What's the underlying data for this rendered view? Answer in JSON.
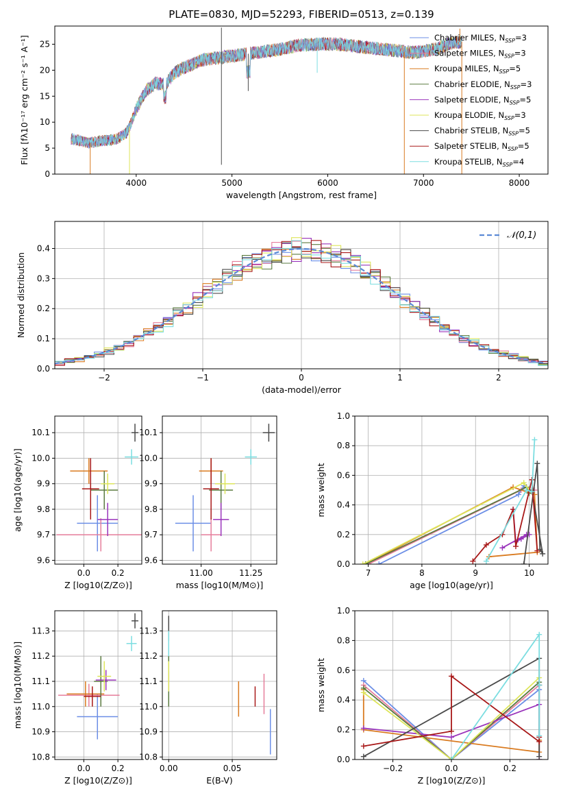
{
  "figure_title": "PLATE=0830, MJD=52293, FIBERID=0513, z=0.139",
  "colors": [
    "#6b8ee6",
    "#e67d9b",
    "#d97a1f",
    "#5a7a3f",
    "#9933bb",
    "#dde55a",
    "#4a4a4a",
    "#a81818",
    "#7bdde0"
  ],
  "chart_data": [
    {
      "id": "spectrum",
      "type": "line",
      "xlabel": "wavelength [Angstrom, rest frame]",
      "ylabel": "Flux [fλ10⁻¹⁷ erg cm⁻² s⁻¹ A⁻¹]",
      "xlim": [
        3150,
        8300
      ],
      "ylim": [
        0,
        28.5
      ],
      "xticks": [
        4000,
        5000,
        6000,
        7000,
        8000
      ],
      "yticks": [
        0,
        5,
        10,
        15,
        20,
        25
      ],
      "continuum": {
        "x": [
          3320,
          3400,
          3500,
          3600,
          3700,
          3800,
          3900,
          3950,
          4000,
          4100,
          4200,
          4300,
          4400,
          4500,
          4700,
          4900,
          5100,
          5300,
          5500,
          5700,
          5900,
          6100,
          6300,
          6500,
          6700,
          6900,
          7100,
          7300,
          7400
        ],
        "y": [
          6.8,
          6.5,
          6.0,
          6.3,
          6.5,
          6.8,
          8.0,
          10.0,
          12.5,
          16.0,
          17.5,
          17.2,
          19.5,
          20.5,
          22.0,
          22.5,
          23.0,
          23.5,
          24.0,
          24.8,
          25.0,
          25.0,
          24.6,
          24.2,
          23.8,
          23.4,
          24.0,
          25.2,
          25.5
        ]
      },
      "spikes": [
        {
          "x": 3520,
          "y": 0.0,
          "series": 2
        },
        {
          "x": 3930,
          "y": 0.0,
          "series": 5
        },
        {
          "x": 4890,
          "y": 28.2,
          "series": 6
        },
        {
          "x": 4890,
          "y": 1.8,
          "series": 6
        },
        {
          "x": 5170,
          "y": 16.0,
          "series": 6
        },
        {
          "x": 5890,
          "y": 19.5,
          "series": 8
        },
        {
          "x": 6800,
          "y": 0.0,
          "series": 2
        },
        {
          "x": 7400,
          "y": 0.0,
          "series": 2
        },
        {
          "x": 7380,
          "y": 28.0,
          "series": 2
        }
      ],
      "legend": [
        {
          "label": "Chabrier MILES, N",
          "sub": "SSP",
          "eq": "=3",
          "series": 0
        },
        {
          "label": "Salpeter MILES, N",
          "sub": "SSP",
          "eq": "=3",
          "series": 1
        },
        {
          "label": "Kroupa MILES, N",
          "sub": "SSP",
          "eq": "=5",
          "series": 2
        },
        {
          "label": "Chabrier ELODIE, N",
          "sub": "SSP",
          "eq": "=3",
          "series": 3
        },
        {
          "label": "Salpeter ELODIE, N",
          "sub": "SSP",
          "eq": "=5",
          "series": 4
        },
        {
          "label": "Kroupa ELODIE, N",
          "sub": "SSP",
          "eq": "=3",
          "series": 5
        },
        {
          "label": "Chabrier STELIB, N",
          "sub": "SSP",
          "eq": "=5",
          "series": 6
        },
        {
          "label": "Salpeter STELIB, N",
          "sub": "SSP",
          "eq": "=5",
          "series": 7
        },
        {
          "label": "Kroupa STELIB, N",
          "sub": "SSP",
          "eq": "=4",
          "series": 8
        }
      ],
      "legend_placement": "upper-right"
    },
    {
      "id": "residuals",
      "type": "histogram",
      "xlabel": "(data-model)/error",
      "ylabel": "Normed distribution",
      "xlim": [
        -2.5,
        2.5
      ],
      "ylim": [
        0,
        0.49
      ],
      "xticks": [
        -2,
        -1,
        0,
        1,
        2
      ],
      "yticks": [
        0.0,
        0.1,
        0.2,
        0.3,
        0.4
      ],
      "bin_width": 0.1,
      "legend": "𝒩(0,1)",
      "legend_placement": "upper-right",
      "gaussian": {
        "mu": 0,
        "sigma": 1,
        "color": "#5b8ad6"
      }
    },
    {
      "id": "age-vs-Z",
      "type": "errorbar",
      "xlabel": "Z [log10(Z/Z⊙)]",
      "ylabel": "age  [log10(age/yr)]",
      "xlim": [
        -0.17,
        0.34
      ],
      "ylim": [
        9.585,
        10.165
      ],
      "xticks": [
        0.0,
        0.2
      ],
      "yticks": [
        9.6,
        9.7,
        9.8,
        9.9,
        10.0,
        10.1
      ],
      "points": [
        {
          "x": 0.08,
          "xerr": 0.12,
          "y": 9.745,
          "yerr": 0.11,
          "series": 0
        },
        {
          "x": 0.1,
          "xerr": 0.26,
          "y": 9.7,
          "yerr": 0.065,
          "series": 1
        },
        {
          "x": 0.03,
          "xerr": 0.11,
          "y": 9.95,
          "yerr": 0.05,
          "series": 2
        },
        {
          "x": 0.12,
          "xerr": 0.08,
          "y": 9.875,
          "yerr": 0.075,
          "series": 3
        },
        {
          "x": 0.14,
          "xerr": 0.06,
          "y": 9.76,
          "yerr": 0.065,
          "series": 4
        },
        {
          "x": 0.14,
          "xerr": 0.04,
          "y": 9.9,
          "yerr": 0.04,
          "series": 5
        },
        {
          "x": 0.3,
          "xerr": 0.02,
          "y": 10.1,
          "yerr": 0.035,
          "series": 6
        },
        {
          "x": 0.04,
          "xerr": 0.05,
          "y": 9.88,
          "yerr": 0.12,
          "series": 7
        },
        {
          "x": 0.28,
          "xerr": 0.04,
          "y": 10.005,
          "yerr": 0.03,
          "series": 8
        }
      ]
    },
    {
      "id": "age-vs-mass",
      "type": "errorbar",
      "xlabel": "mass [log10(M/M⊙)]",
      "ylabel": "",
      "xlim": [
        10.805,
        11.38
      ],
      "ylim": [
        9.585,
        10.165
      ],
      "xticks": [
        11.0,
        11.25
      ],
      "yticks": [
        9.6,
        9.7,
        9.8,
        9.9,
        10.0,
        10.1
      ],
      "points": [
        {
          "x": 10.96,
          "xerr": 0.09,
          "y": 9.745,
          "yerr": 0.11,
          "series": 0
        },
        {
          "x": 11.05,
          "xerr": 0.05,
          "y": 9.7,
          "yerr": 0.065,
          "series": 1
        },
        {
          "x": 11.05,
          "xerr": 0.06,
          "y": 9.95,
          "yerr": 0.05,
          "series": 2
        },
        {
          "x": 11.1,
          "xerr": 0.06,
          "y": 9.875,
          "yerr": 0.075,
          "series": 3
        },
        {
          "x": 11.1,
          "xerr": 0.04,
          "y": 9.76,
          "yerr": 0.065,
          "series": 4
        },
        {
          "x": 11.12,
          "xerr": 0.05,
          "y": 9.9,
          "yerr": 0.04,
          "series": 5
        },
        {
          "x": 11.34,
          "xerr": 0.03,
          "y": 10.1,
          "yerr": 0.035,
          "series": 6
        },
        {
          "x": 11.05,
          "xerr": 0.04,
          "y": 9.88,
          "yerr": 0.12,
          "series": 7
        },
        {
          "x": 11.25,
          "xerr": 0.03,
          "y": 10.005,
          "yerr": 0.03,
          "series": 8
        }
      ]
    },
    {
      "id": "weight-vs-age",
      "type": "line",
      "xlabel": "age  [log10(age/yr)]",
      "ylabel": "mass weight",
      "xlim": [
        6.75,
        10.35
      ],
      "ylim": [
        0,
        1.0
      ],
      "xticks": [
        7,
        8,
        9,
        10
      ],
      "yticks": [
        0.0,
        0.2,
        0.4,
        0.6,
        0.8,
        1.0
      ],
      "series": [
        {
          "series": 0,
          "x": [
            7.2,
            9.8,
            9.9
          ],
          "y": [
            0.0,
            0.47,
            0.53
          ]
        },
        {
          "series": 1,
          "x": [
            7.0,
            9.85,
            10.1
          ],
          "y": [
            0.0,
            0.5,
            0.5
          ]
        },
        {
          "series": 2,
          "x": [
            6.95,
            9.7,
            10.1,
            10.15,
            9.25
          ],
          "y": [
            0.0,
            0.52,
            0.47,
            0.08,
            0.05
          ]
        },
        {
          "series": 3,
          "x": [
            6.95,
            9.95,
            10.0
          ],
          "y": [
            0.0,
            0.52,
            0.48
          ]
        },
        {
          "series": 4,
          "x": [
            9.7,
            9.75,
            9.85,
            10.0,
            9.95,
            9.5
          ],
          "y": [
            0.37,
            0.15,
            0.17,
            0.2,
            0.2,
            0.11
          ]
        },
        {
          "series": 5,
          "x": [
            6.9,
            9.9,
            10.0
          ],
          "y": [
            0.0,
            0.55,
            0.5
          ]
        },
        {
          "series": 6,
          "x": [
            9.9,
            10.15,
            10.2,
            10.25,
            10.05
          ],
          "y": [
            0.0,
            0.68,
            0.1,
            0.07,
            0.5
          ]
        },
        {
          "series": 7,
          "x": [
            8.95,
            9.2,
            9.5,
            9.7,
            9.75,
            10.05,
            10.15
          ],
          "y": [
            0.02,
            0.13,
            0.2,
            0.37,
            0.12,
            0.57,
            0.09
          ]
        },
        {
          "series": 8,
          "x": [
            9.2,
            9.95,
            10.05,
            10.1
          ],
          "y": [
            0.02,
            0.5,
            0.49,
            0.84
          ]
        }
      ]
    },
    {
      "id": "mass-vs-Z",
      "type": "errorbar",
      "xlabel": "Z [log10(Z/Z⊙)]",
      "ylabel": "mass [log10(M/M⊙)]",
      "xlim": [
        -0.17,
        0.34
      ],
      "ylim": [
        10.79,
        11.38
      ],
      "xticks": [
        0.0,
        0.2
      ],
      "yticks": [
        10.8,
        10.9,
        11.0,
        11.1,
        11.2,
        11.3
      ],
      "points": [
        {
          "x": 0.08,
          "xerr": 0.12,
          "y": 10.96,
          "yerr": 0.09,
          "series": 0
        },
        {
          "x": 0.03,
          "xerr": 0.18,
          "y": 11.045,
          "yerr": 0.045,
          "series": 1
        },
        {
          "x": 0.01,
          "xerr": 0.11,
          "y": 11.05,
          "yerr": 0.05,
          "series": 2
        },
        {
          "x": 0.1,
          "xerr": 0.04,
          "y": 11.1,
          "yerr": 0.1,
          "series": 3
        },
        {
          "x": 0.13,
          "xerr": 0.06,
          "y": 11.105,
          "yerr": 0.04,
          "series": 4
        },
        {
          "x": 0.12,
          "xerr": 0.04,
          "y": 11.12,
          "yerr": 0.06,
          "series": 5
        },
        {
          "x": 0.3,
          "xerr": 0.02,
          "y": 11.34,
          "yerr": 0.03,
          "series": 6
        },
        {
          "x": 0.05,
          "xerr": 0.05,
          "y": 11.04,
          "yerr": 0.04,
          "series": 7
        },
        {
          "x": 0.28,
          "xerr": 0.03,
          "y": 11.25,
          "yerr": 0.03,
          "series": 8
        }
      ]
    },
    {
      "id": "mass-vs-EBV",
      "type": "errorbar",
      "xlabel": "E(B-V)",
      "ylabel": "",
      "xlim": [
        -0.005,
        0.085
      ],
      "ylim": [
        10.79,
        11.38
      ],
      "xticks": [
        0.0,
        0.05
      ],
      "yticks": [
        10.8,
        10.9,
        11.0,
        11.1,
        11.2,
        11.3
      ],
      "points": [
        {
          "x": 0.08,
          "xerr": 0,
          "y": 10.9,
          "yerr": 0.09,
          "series": 0
        },
        {
          "x": 0.075,
          "xerr": 0,
          "y": 11.05,
          "yerr": 0.08,
          "series": 1
        },
        {
          "x": 0.055,
          "xerr": 0,
          "y": 11.03,
          "yerr": 0.07,
          "series": 2
        },
        {
          "x": 0.0,
          "xerr": 0,
          "y": 11.1,
          "yerr": 0.1,
          "series": 3
        },
        {
          "x": 0.0,
          "xerr": 0,
          "y": 11.1,
          "yerr": 0.04,
          "series": 4
        },
        {
          "x": 0.0,
          "xerr": 0,
          "y": 11.12,
          "yerr": 0.06,
          "series": 5
        },
        {
          "x": 0.0,
          "xerr": 0,
          "y": 11.31,
          "yerr": 0.05,
          "series": 6
        },
        {
          "x": 0.068,
          "xerr": 0,
          "y": 11.04,
          "yerr": 0.04,
          "series": 7
        },
        {
          "x": 0.0,
          "xerr": 0,
          "y": 11.25,
          "yerr": 0.05,
          "series": 8
        }
      ]
    },
    {
      "id": "weight-vs-Z",
      "type": "line",
      "xlabel": "Z [log10(Z/Z⊙)]",
      "ylabel": "mass weight",
      "xlim": [
        -0.33,
        0.33
      ],
      "ylim": [
        0,
        1.0
      ],
      "xticks": [
        -0.2,
        0.0,
        0.2
      ],
      "yticks": [
        0.0,
        0.2,
        0.4,
        0.6,
        0.8,
        1.0
      ],
      "series": [
        {
          "series": 0,
          "x": [
            -0.3,
            0.0,
            0.3,
            0.3
          ],
          "y": [
            0.53,
            0.0,
            0.47,
            0.0
          ]
        },
        {
          "series": 1,
          "x": [
            -0.3,
            0.0,
            0.3,
            0.3
          ],
          "y": [
            0.5,
            0.0,
            0.5,
            0.0
          ]
        },
        {
          "series": 2,
          "x": [
            -0.3,
            -0.3,
            0.3,
            0.3
          ],
          "y": [
            0.47,
            0.2,
            0.05,
            0.13
          ]
        },
        {
          "series": 3,
          "x": [
            -0.3,
            0.0,
            0.3
          ],
          "y": [
            0.48,
            0.0,
            0.52
          ]
        },
        {
          "series": 4,
          "x": [
            -0.3,
            0.0,
            0.3
          ],
          "y": [
            0.21,
            0.15,
            0.37
          ]
        },
        {
          "series": 5,
          "x": [
            -0.3,
            0.0,
            0.3
          ],
          "y": [
            0.45,
            0.0,
            0.55
          ]
        },
        {
          "series": 6,
          "x": [
            -0.3,
            0.3,
            0.3,
            0.3
          ],
          "y": [
            0.02,
            0.68,
            0.5,
            0.02
          ]
        },
        {
          "series": 7,
          "x": [
            -0.3,
            0.0,
            0.0,
            0.3,
            0.3
          ],
          "y": [
            0.09,
            0.19,
            0.56,
            0.12,
            0.15
          ]
        },
        {
          "series": 8,
          "x": [
            0.0,
            0.3,
            0.3,
            0.3
          ],
          "y": [
            0.0,
            0.84,
            0.5,
            0.16
          ]
        }
      ]
    }
  ]
}
